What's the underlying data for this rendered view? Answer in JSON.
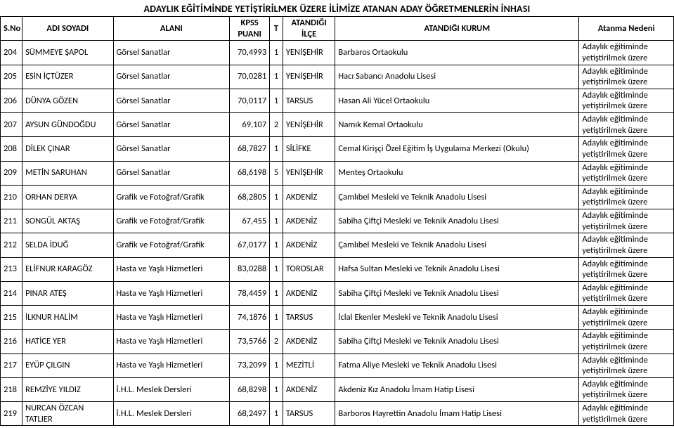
{
  "title": "ADAYLIK EĞİTİMİNDE YETİŞTİRİLMEK ÜZERE İLİMİZE ATANAN ADAY ÖĞRETMENLERİN İNHASI",
  "columns": {
    "sno": "S.No",
    "name": "ADI SOYADI",
    "alani": "ALANI",
    "kpss": "KPSS PUANI",
    "t": "T",
    "ilce": "ATANDIĞI İLÇE",
    "kurum": "ATANDIĞI KURUM",
    "neden": "Atanma Nedeni"
  },
  "reason_text": "Adaylık eğitiminde yetiştirilmek üzere",
  "rows": [
    {
      "sno": "204",
      "name": "SÜMMEYE ŞAPOL",
      "alani": "Görsel Sanatlar",
      "kpss": "70,4993",
      "t": "1",
      "ilce": "YENİŞEHİR",
      "kurum": "Barbaros Ortaokulu"
    },
    {
      "sno": "205",
      "name": "ESİN İÇTÜZER",
      "alani": "Görsel Sanatlar",
      "kpss": "70,0281",
      "t": "1",
      "ilce": "YENİŞEHİR",
      "kurum": "Hacı Sabancı Anadolu Lisesi"
    },
    {
      "sno": "206",
      "name": "DÜNYA GÖZEN",
      "alani": "Görsel Sanatlar",
      "kpss": "70,0117",
      "t": "1",
      "ilce": "TARSUS",
      "kurum": "Hasan Ali Yücel Ortaokulu"
    },
    {
      "sno": "207",
      "name": "AYSUN GÜNDOĞDU",
      "alani": "Görsel Sanatlar",
      "kpss": "69,107",
      "t": "2",
      "ilce": "YENİŞEHİR",
      "kurum": "Namık Kemal Ortaokulu"
    },
    {
      "sno": "208",
      "name": "DİLEK ÇINAR",
      "alani": "Görsel Sanatlar",
      "kpss": "68,7827",
      "t": "1",
      "ilce": "SİLİFKE",
      "kurum": "Cemal Kirişçi Özel Eğitim İş Uygulama Merkezi (Okulu)"
    },
    {
      "sno": "209",
      "name": "METİN SARUHAN",
      "alani": "Görsel Sanatlar",
      "kpss": "68,6198",
      "t": "5",
      "ilce": "YENİŞEHİR",
      "kurum": "Menteş Ortaokulu"
    },
    {
      "sno": "210",
      "name": "ORHAN DERYA",
      "alani": "Grafik ve Fotoğraf/Grafik",
      "kpss": "68,2805",
      "t": "1",
      "ilce": "AKDENİZ",
      "kurum": "Çamlıbel Mesleki ve Teknik Anadolu Lisesi"
    },
    {
      "sno": "211",
      "name": "SONGÜL AKTAŞ",
      "alani": "Grafik ve Fotoğraf/Grafik",
      "kpss": "67,455",
      "t": "1",
      "ilce": "AKDENİZ",
      "kurum": "Sabiha Çiftçi Mesleki ve Teknik Anadolu Lisesi"
    },
    {
      "sno": "212",
      "name": "SELDA İDUĞ",
      "alani": "Grafik ve Fotoğraf/Grafik",
      "kpss": "67,0177",
      "t": "1",
      "ilce": "AKDENİZ",
      "kurum": "Çamlıbel Mesleki ve Teknik Anadolu Lisesi"
    },
    {
      "sno": "213",
      "name": "ELİFNUR KARAGÖZ",
      "alani": "Hasta ve Yaşlı Hizmetleri",
      "kpss": "83,0288",
      "t": "1",
      "ilce": "TOROSLAR",
      "kurum": "Hafsa Sultan Mesleki ve Teknik Anadolu Lisesi"
    },
    {
      "sno": "214",
      "name": "PINAR ATEŞ",
      "alani": "Hasta ve Yaşlı Hizmetleri",
      "kpss": "78,4459",
      "t": "1",
      "ilce": "AKDENİZ",
      "kurum": "Sabiha Çiftçi Mesleki ve Teknik Anadolu Lisesi"
    },
    {
      "sno": "215",
      "name": "İLKNUR HALİM",
      "alani": "Hasta ve Yaşlı Hizmetleri",
      "kpss": "74,1876",
      "t": "1",
      "ilce": "TARSUS",
      "kurum": "İclal Ekenler Mesleki ve Teknik Anadolu Lisesi"
    },
    {
      "sno": "216",
      "name": "HATİCE YER",
      "alani": "Hasta ve Yaşlı Hizmetleri",
      "kpss": "73,5766",
      "t": "2",
      "ilce": "AKDENİZ",
      "kurum": "Sabiha Çiftçi Mesleki ve Teknik Anadolu Lisesi"
    },
    {
      "sno": "217",
      "name": "EYÜP ÇILGIN",
      "alani": "Hasta ve Yaşlı Hizmetleri",
      "kpss": "73,2099",
      "t": "1",
      "ilce": "MEZİTLİ",
      "kurum": "Fatma Aliye Mesleki ve Teknik Anadolu Lisesi"
    },
    {
      "sno": "218",
      "name": "REMZİYE YILDIZ",
      "alani": "İ.H.L. Meslek Dersleri",
      "kpss": "68,8298",
      "t": "1",
      "ilce": "AKDENİZ",
      "kurum": "Akdeniz Kız Anadolu İmam Hatip Lisesi"
    },
    {
      "sno": "219",
      "name": "NURCAN ÖZCAN TATLIER",
      "alani": "İ.H.L. Meslek Dersleri",
      "kpss": "68,2497",
      "t": "1",
      "ilce": "TARSUS",
      "kurum": "Barboros Hayrettin Anadolu İmam Hatip Lisesi"
    }
  ]
}
